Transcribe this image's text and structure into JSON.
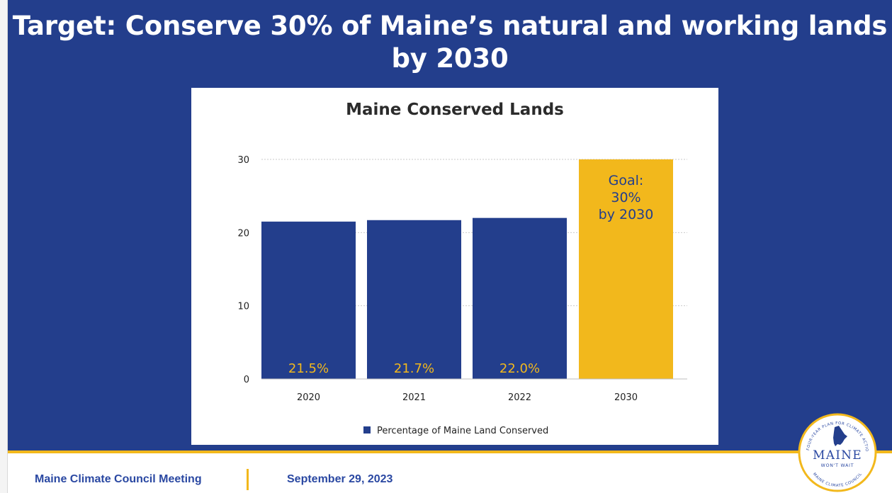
{
  "slide": {
    "title_line1": "Target: Conserve 30% of Maine’s natural and working lands",
    "title_line2": "by 2030"
  },
  "chart_data": {
    "type": "bar",
    "title": "Maine Conserved Lands",
    "categories": [
      "2020",
      "2021",
      "2022",
      "2030"
    ],
    "series": [
      {
        "name": "Percentage of Maine Land Conserved",
        "values": [
          21.5,
          21.7,
          22.0,
          30
        ]
      }
    ],
    "data_labels": [
      "21.5%",
      "21.7%",
      "22.0%",
      ""
    ],
    "annotation": [
      "Goal:",
      "30%",
      "by 2030"
    ],
    "yticks": [
      0,
      10,
      20,
      30
    ],
    "ylim": [
      0,
      30
    ],
    "grid": true,
    "legend_position": "bottom",
    "colors": {
      "series": "#233e8c",
      "goal": "#f2b81c",
      "label": "#f2b81c",
      "annotation": "#233e8c"
    }
  },
  "footer": {
    "meeting": "Maine Climate Council Meeting",
    "date": "September 29, 2023"
  },
  "logo": {
    "main": "MAINE",
    "sub": "WON'T WAIT",
    "ring_top": "A FOUR-YEAR PLAN FOR CLIMATE ACTION",
    "ring_bottom": "MAINE CLIMATE COUNCIL",
    "icon": "maine-state-icon"
  }
}
